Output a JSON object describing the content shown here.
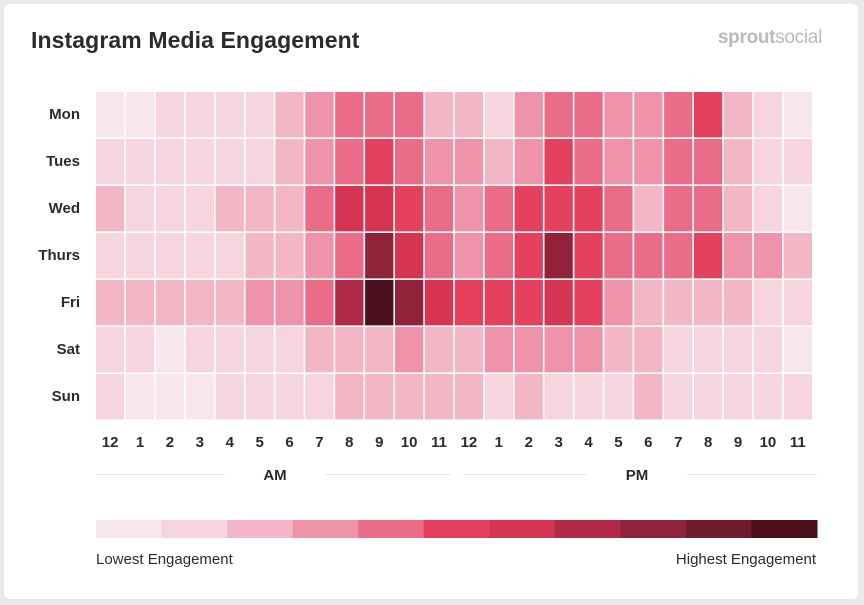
{
  "header": {
    "title": "Instagram Media Engagement",
    "brand_bold": "sprout",
    "brand_light": "social"
  },
  "chart_data": {
    "type": "heatmap",
    "title": "Instagram Media Engagement",
    "y": [
      "Mon",
      "Tues",
      "Wed",
      "Thurs",
      "Fri",
      "Sat",
      "Sun"
    ],
    "x": [
      "12",
      "1",
      "2",
      "3",
      "4",
      "5",
      "6",
      "7",
      "8",
      "9",
      "10",
      "11",
      "12",
      "1",
      "2",
      "3",
      "4",
      "5",
      "6",
      "7",
      "8",
      "9",
      "10",
      "11"
    ],
    "x_groups": [
      "AM",
      "PM"
    ],
    "scale_levels": 11,
    "scale_colors": [
      "#f7e6eb",
      "#f6d5de",
      "#f3b6c6",
      "#ee93a9",
      "#ea6c87",
      "#e5415f",
      "#d53452",
      "#b12b48",
      "#90223a",
      "#6f1a2d",
      "#4c0f1d"
    ],
    "values": [
      [
        0,
        0,
        1,
        1,
        1,
        1,
        2,
        3,
        4,
        4,
        4,
        2,
        2,
        1,
        3,
        4,
        4,
        3,
        3,
        4,
        5,
        2,
        1,
        0
      ],
      [
        1,
        1,
        1,
        1,
        1,
        1,
        2,
        3,
        4,
        5,
        4,
        3,
        3,
        2,
        3,
        5,
        4,
        3,
        3,
        4,
        4,
        2,
        1,
        1
      ],
      [
        2,
        1,
        1,
        1,
        2,
        2,
        2,
        4,
        6,
        6,
        5,
        4,
        3,
        4,
        5,
        5,
        5,
        4,
        2,
        4,
        4,
        2,
        1,
        0
      ],
      [
        1,
        1,
        1,
        1,
        1,
        2,
        2,
        3,
        4,
        8,
        6,
        4,
        3,
        4,
        5,
        8,
        5,
        4,
        4,
        4,
        5,
        3,
        3,
        2
      ],
      [
        2,
        2,
        2,
        2,
        2,
        3,
        3,
        4,
        7,
        10,
        8,
        6,
        5,
        5,
        5,
        6,
        5,
        3,
        2,
        2,
        2,
        2,
        1,
        1
      ],
      [
        1,
        1,
        0,
        1,
        1,
        1,
        1,
        2,
        2,
        2,
        3,
        2,
        2,
        3,
        3,
        3,
        3,
        2,
        2,
        1,
        1,
        1,
        1,
        0
      ],
      [
        1,
        0,
        0,
        0,
        1,
        1,
        1,
        1,
        2,
        2,
        2,
        2,
        2,
        1,
        2,
        1,
        1,
        1,
        2,
        1,
        1,
        1,
        1,
        1
      ]
    ],
    "legend_low": "Lowest Engagement",
    "legend_high": "Highest Engagement"
  }
}
